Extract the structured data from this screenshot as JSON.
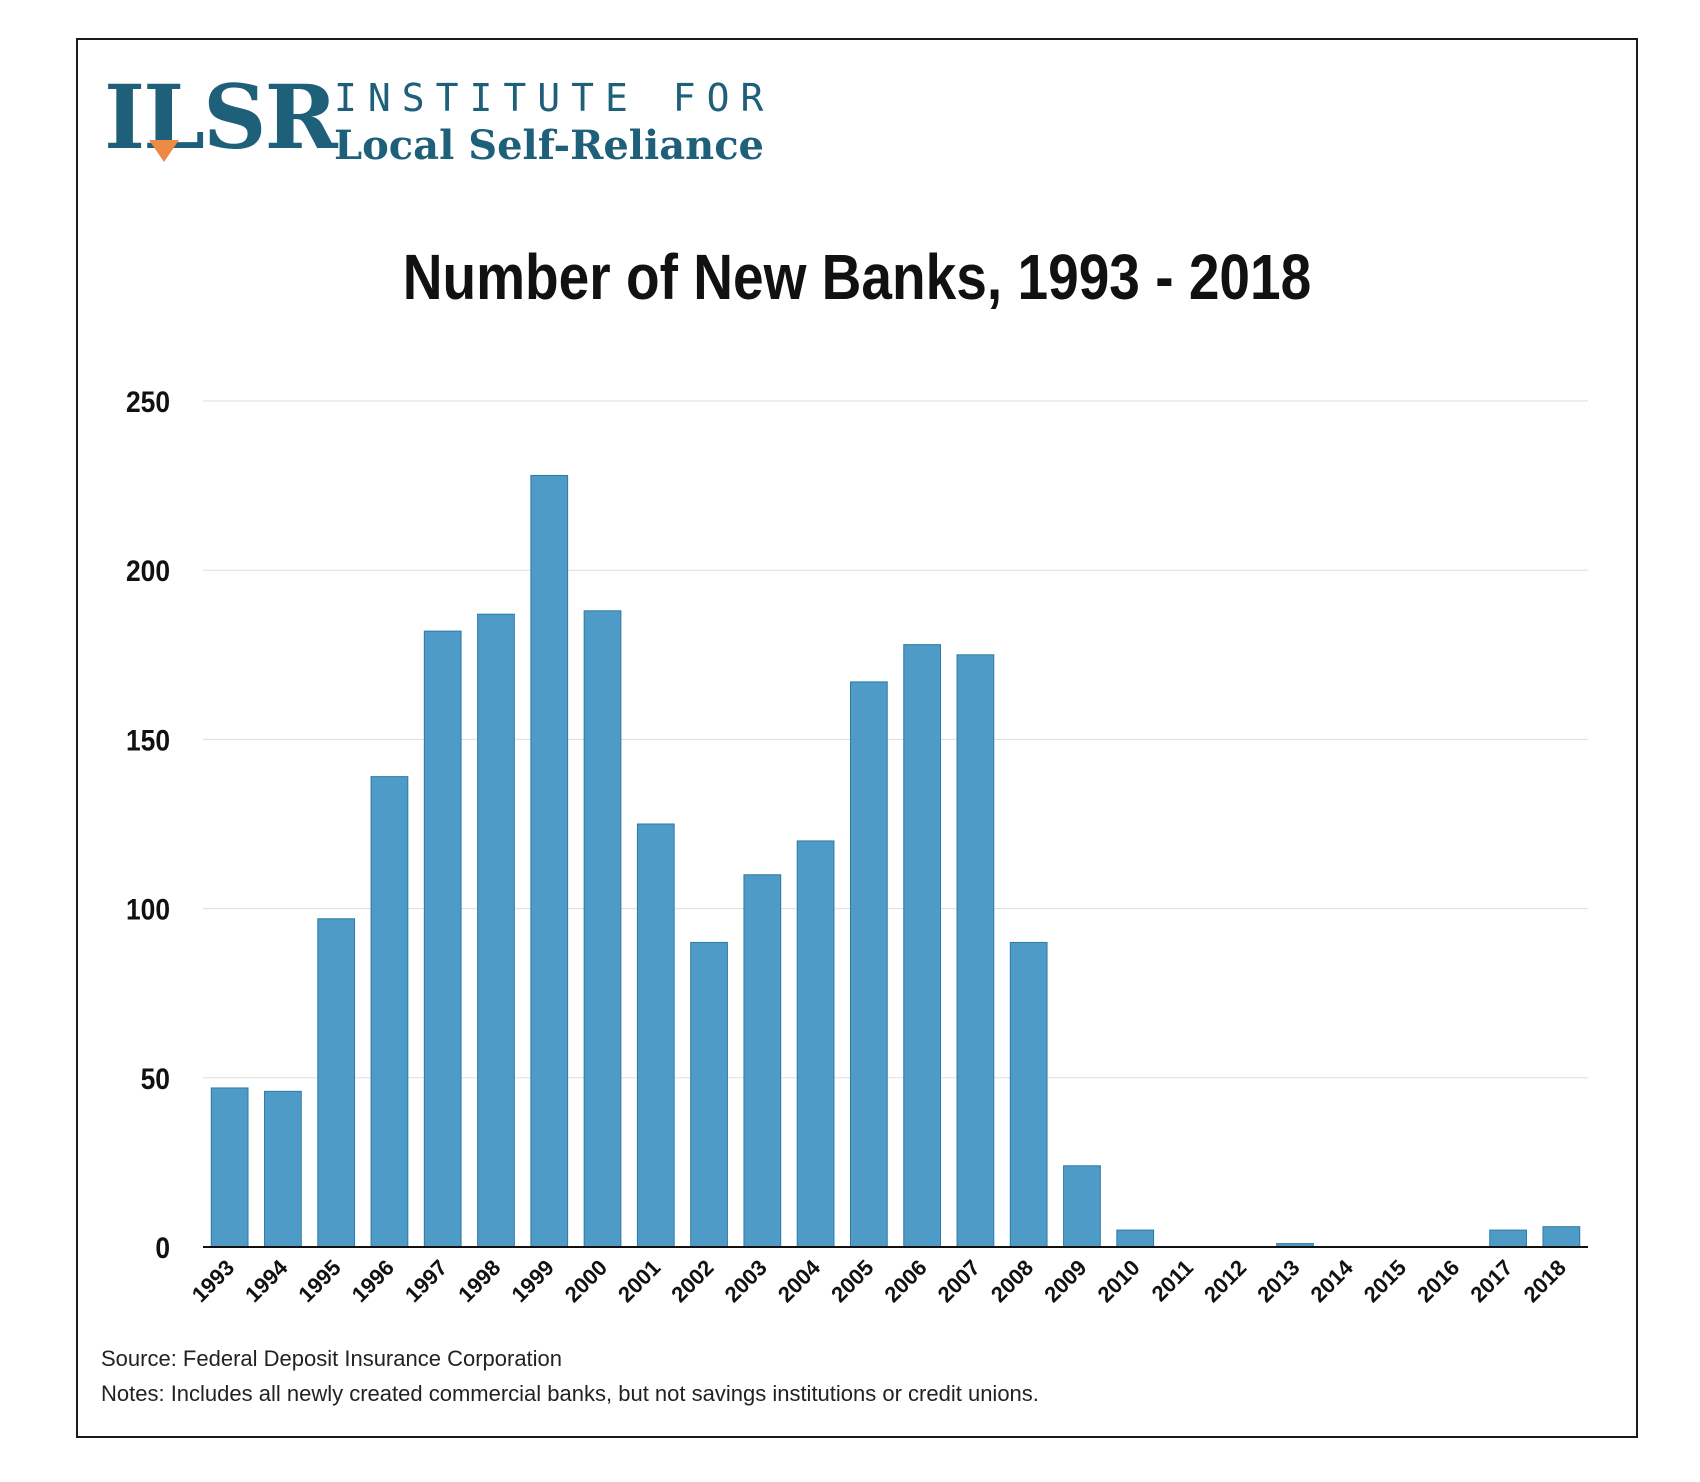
{
  "logo": {
    "mark": "ILSR",
    "line1": "INSTITUTE FOR",
    "line2": "Local Self-Reliance",
    "color": "#1e5f7a",
    "accent": "#ef8a44"
  },
  "chart_data": {
    "type": "bar",
    "title": "Number of New Banks, 1993 - 2018",
    "xlabel": "",
    "ylabel": "",
    "categories": [
      "1993",
      "1994",
      "1995",
      "1996",
      "1997",
      "1998",
      "1999",
      "2000",
      "2001",
      "2002",
      "2003",
      "2004",
      "2005",
      "2006",
      "2007",
      "2008",
      "2009",
      "2010",
      "2011",
      "2012",
      "2013",
      "2014",
      "2015",
      "2016",
      "2017",
      "2018"
    ],
    "values": [
      47,
      46,
      97,
      139,
      182,
      187,
      228,
      188,
      125,
      90,
      110,
      120,
      167,
      178,
      175,
      90,
      24,
      5,
      0,
      0,
      1,
      0,
      0,
      0,
      5,
      6
    ],
    "ylim": [
      0,
      250
    ],
    "yticks": [
      "0",
      "50",
      "100",
      "150",
      "200",
      "250"
    ],
    "grid": true,
    "bar_color": "#4e9bc8",
    "bar_edge_color": "#2f7aa6"
  },
  "footer": {
    "source": "Source: Federal Deposit Insurance Corporation",
    "notes": "Notes: Includes all newly created commercial banks, but not savings institutions or credit unions."
  }
}
